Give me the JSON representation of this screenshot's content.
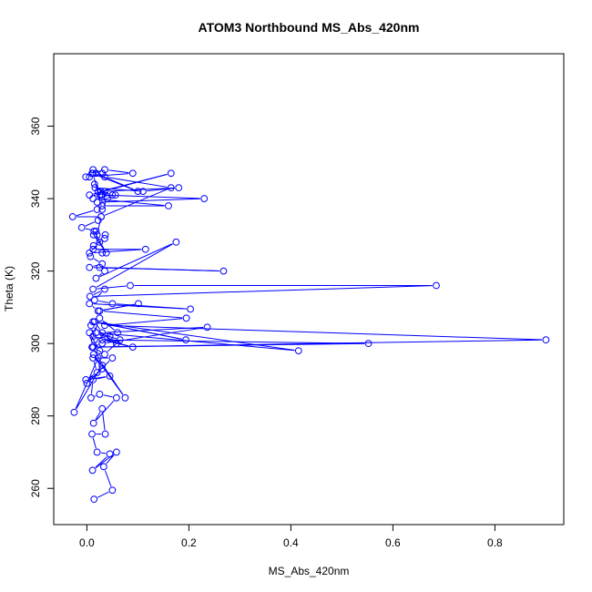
{
  "chart_data": {
    "type": "line",
    "title": "ATOM3 Northbound MS_Abs_420nm",
    "xlabel": "MS_Abs_420nm",
    "ylabel": "Theta (K)",
    "xlim": [
      -0.065,
      0.935
    ],
    "ylim": [
      250,
      380
    ],
    "xticks": [
      0.0,
      0.2,
      0.4,
      0.6,
      0.8
    ],
    "xtick_labels": [
      "0.0",
      "0.2",
      "0.4",
      "0.6",
      "0.8"
    ],
    "yticks": [
      260,
      280,
      300,
      320,
      340,
      360
    ],
    "ytick_labels": [
      "260",
      "280",
      "300",
      "320",
      "340",
      "360"
    ],
    "grid": false,
    "legend": "none",
    "series_color": "#0000ff",
    "marker": "open-circle",
    "series": [
      {
        "x": [
          0.014,
          0.05,
          0.033,
          0.058,
          0.011,
          0.045,
          0.02,
          0.01,
          0.036,
          0.03,
          0.013,
          0.058,
          0.025,
          0.008,
          0.012,
          0.045,
          -0.002,
          0.02,
          0.012,
          0.05,
          0.0,
          0.03,
          0.013,
          0.075,
          0.022,
          -0.025,
          0.03,
          0.012,
          0.005,
          0.025,
          0.03,
          0.045,
          0.058,
          0.008,
          0.015,
          0.06,
          0.025,
          0.012,
          0.09,
          0.03,
          0.552,
          0.012,
          0.035,
          0.065,
          0.018,
          0.415,
          0.012,
          0.194,
          0.015,
          0.03,
          0.236,
          0.03,
          0.01,
          0.9,
          0.035,
          0.195,
          0.025,
          0.101,
          0.022,
          0.005,
          0.203,
          0.05,
          0.015,
          0.035,
          0.006,
          0.685,
          0.085,
          0.012,
          0.175,
          0.018,
          0.035,
          0.025,
          0.268,
          0.005,
          0.03,
          0.007,
          0.012,
          0.115,
          0.005,
          0.025,
          0.013,
          0.038,
          0.014,
          0.018,
          -0.01,
          0.022,
          0.028,
          -0.028,
          0.02,
          0.03,
          0.16,
          0.012,
          0.028,
          0.23,
          0.02,
          0.056,
          0.03,
          0.022,
          0.035,
          0.18,
          0.11,
          0.016,
          0.05,
          0.027,
          0.165,
          0.005,
          0.025,
          0.015,
          0.04,
          0.03,
          0.012,
          -0.002,
          0.09,
          0.035,
          0.018,
          0.1,
          0.01,
          0.005,
          0.03,
          0.012,
          0.035,
          0.165,
          0.028,
          0.02,
          0.036,
          0.035,
          0.013,
          0.03
        ],
        "y": [
          257,
          259.5,
          266,
          270,
          265,
          269.5,
          270,
          275,
          275,
          282,
          278,
          285,
          286,
          285,
          290,
          291,
          290,
          292,
          296,
          296,
          289,
          293,
          297,
          285,
          296,
          281,
          294,
          299,
          303,
          298,
          300,
          302,
          300,
          305,
          301,
          303,
          307,
          302,
          299,
          301,
          300,
          299,
          297,
          301,
          303,
          298,
          306,
          301,
          306,
          303,
          304.5,
          300,
          299,
          301,
          305,
          307,
          309,
          311,
          309,
          311,
          309.5,
          311,
          312,
          315,
          313,
          316,
          316,
          315,
          328,
          318,
          320,
          321,
          320,
          321,
          322,
          324,
          326,
          326,
          325,
          328,
          330,
          325,
          331,
          331,
          332,
          334,
          335,
          335,
          337,
          338,
          338,
          340,
          341,
          340,
          339,
          341,
          341,
          342,
          342,
          343,
          342,
          343,
          341,
          342,
          347,
          341,
          341,
          344,
          340,
          337,
          347,
          346,
          347,
          348,
          347,
          342,
          347,
          346,
          347,
          348,
          346,
          343,
          335,
          330,
          330,
          329,
          327,
          325
        ]
      }
    ]
  }
}
